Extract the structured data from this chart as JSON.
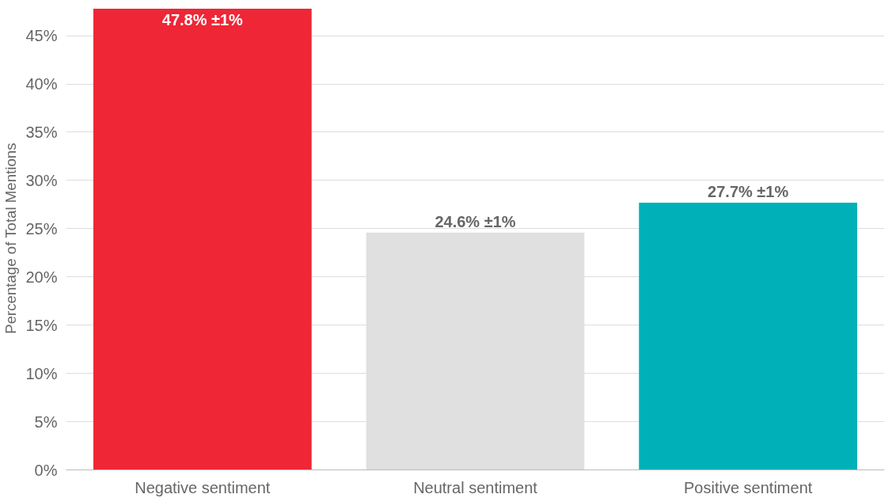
{
  "chart_data": {
    "type": "bar",
    "ylabel": "Percentage of Total Mentions",
    "categories": [
      "Negative sentiment",
      "Neutral sentiment",
      "Positive sentiment"
    ],
    "values": [
      47.8,
      24.6,
      27.7
    ],
    "colors": [
      "#ee2636",
      "#e0e0e0",
      "#00b0b9"
    ],
    "value_labels": [
      "47.8% ±1%",
      "24.6% ±1%",
      "27.7% ±1%"
    ],
    "ylim": [
      0,
      48
    ],
    "yticks": [
      {
        "value": 0,
        "label": "0%"
      },
      {
        "value": 5,
        "label": "5%"
      },
      {
        "value": 10,
        "label": "10%"
      },
      {
        "value": 15,
        "label": "15%"
      },
      {
        "value": 20,
        "label": "20%"
      },
      {
        "value": 25,
        "label": "25%"
      },
      {
        "value": 30,
        "label": "30%"
      },
      {
        "value": 35,
        "label": "35%"
      },
      {
        "value": 40,
        "label": "40%"
      },
      {
        "value": 45,
        "label": "45%"
      }
    ],
    "grid": "y",
    "legend": false
  }
}
